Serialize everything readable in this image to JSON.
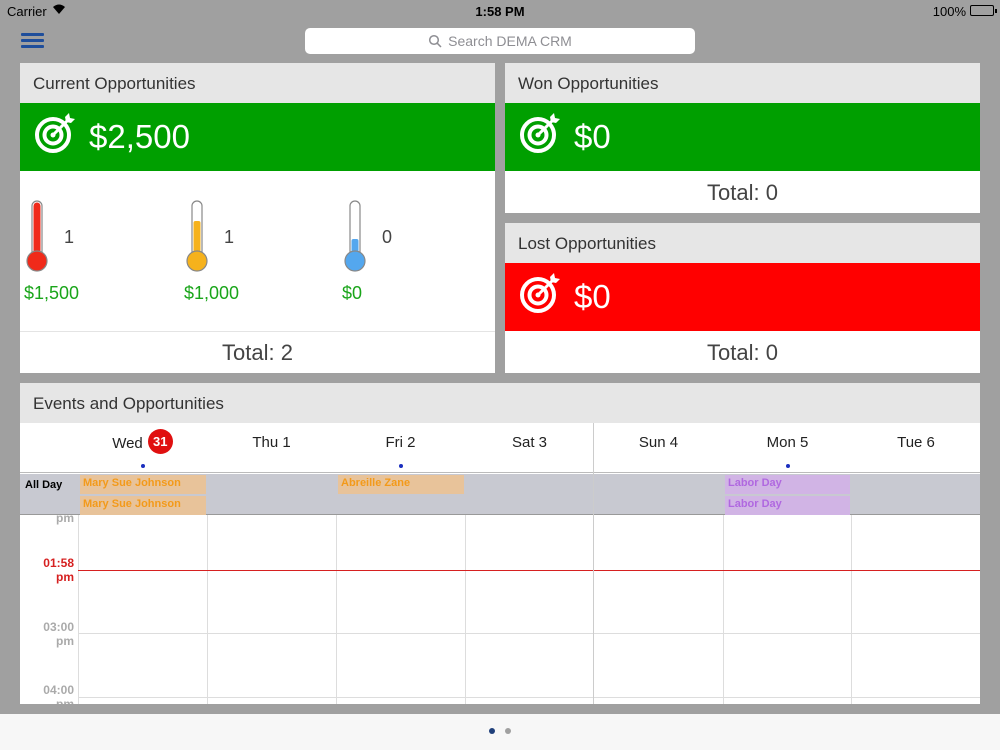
{
  "status_bar": {
    "carrier": "Carrier",
    "time": "1:58 PM",
    "battery": "100%"
  },
  "search": {
    "placeholder": "Search DEMA CRM"
  },
  "current": {
    "title": "Current Opportunities",
    "amount": "$2,500",
    "color": "#009f00",
    "thermometers": [
      {
        "count": "1",
        "amount": "$1,500",
        "color": "#f02a1a",
        "fill": 1.0
      },
      {
        "count": "1",
        "amount": "$1,000",
        "color": "#f6b21c",
        "fill": 0.66
      },
      {
        "count": "0",
        "amount": "$0",
        "color": "#54a7ee",
        "fill": 0.33
      }
    ],
    "total": "Total: 2"
  },
  "won": {
    "title": "Won Opportunities",
    "amount": "$0",
    "color": "#009f00",
    "total": "Total: 0"
  },
  "lost": {
    "title": "Lost Opportunities",
    "amount": "$0",
    "color": "#ff0000",
    "total": "Total: 0"
  },
  "events": {
    "title": "Events and Opportunities",
    "days": [
      {
        "label": "Wed",
        "badge": "31",
        "dot": true
      },
      {
        "label": "Thu 1",
        "dot": false
      },
      {
        "label": "Fri 2",
        "dot": true
      },
      {
        "label": "Sat 3",
        "dot": false
      },
      {
        "label": "Sun 4",
        "dot": false
      },
      {
        "label": "Mon 5",
        "dot": true
      },
      {
        "label": "Tue 6",
        "dot": false
      }
    ],
    "all_day_label": "All Day",
    "all_day_events": [
      {
        "day": 0,
        "row": 0,
        "text": "Mary Sue Johnson",
        "kind": "orange"
      },
      {
        "day": 0,
        "row": 1,
        "text": "Mary Sue Johnson",
        "kind": "orange"
      },
      {
        "day": 2,
        "row": 0,
        "text": "Abreille Zane",
        "kind": "orange"
      },
      {
        "day": 5,
        "row": 0,
        "text": "Labor Day",
        "kind": "purple"
      },
      {
        "day": 5,
        "row": 1,
        "text": "Labor Day",
        "kind": "purple"
      }
    ],
    "time_labels": {
      "pm_top": "pm",
      "now": "01:58",
      "now_pm": "pm",
      "t3": "03:00",
      "t3_pm": "pm",
      "t4": "04:00",
      "t4_pm": "pm"
    }
  },
  "pager": {
    "pages": 2,
    "current": 0,
    "active_color": "#1f3f7a",
    "inactive_color": "#a0a0a0"
  }
}
